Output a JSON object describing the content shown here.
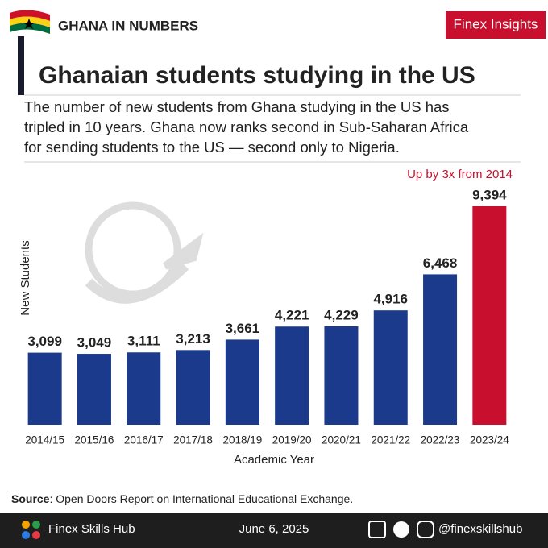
{
  "header": {
    "brand": "GHANA IN NUMBERS",
    "badge": "Finex Insights"
  },
  "chart_data": {
    "type": "bar",
    "title": "Ghanaian students studying in the US",
    "subtitle": [
      "The number of new students from Ghana studying in the US has",
      "tripled in 10 years. Ghana now ranks second in Sub-Saharan Africa",
      "for sending students to the US — second only to Nigeria."
    ],
    "annotation": "Up by 3x from 2014",
    "y_label": "New Students",
    "x_label": "Academic Year",
    "categories": [
      "2014/15",
      "2015/16",
      "2016/17",
      "2017/18",
      "2018/19",
      "2019/20",
      "2020/21",
      "2021/22",
      "2022/23",
      "2023/24"
    ],
    "values": [
      3099,
      3049,
      3111,
      3213,
      3661,
      4221,
      4229,
      4916,
      6468,
      9394
    ],
    "value_labels": [
      "3,099",
      "3,049",
      "3,111",
      "3,213",
      "3,661",
      "4,221",
      "4,229",
      "4,916",
      "6,468",
      "9,394"
    ],
    "colors": [
      "#1b3a8c",
      "#1b3a8c",
      "#1b3a8c",
      "#1b3a8c",
      "#1b3a8c",
      "#1b3a8c",
      "#1b3a8c",
      "#1b3a8c",
      "#1b3a8c",
      "#c8102e"
    ]
  },
  "source": {
    "label": "Source",
    "text": ": Open Doors Report on International Educational Exchange."
  },
  "footer": {
    "name": "Finex Skills Hub",
    "date": "June 6, 2025",
    "handle": "@finexskillshub"
  }
}
